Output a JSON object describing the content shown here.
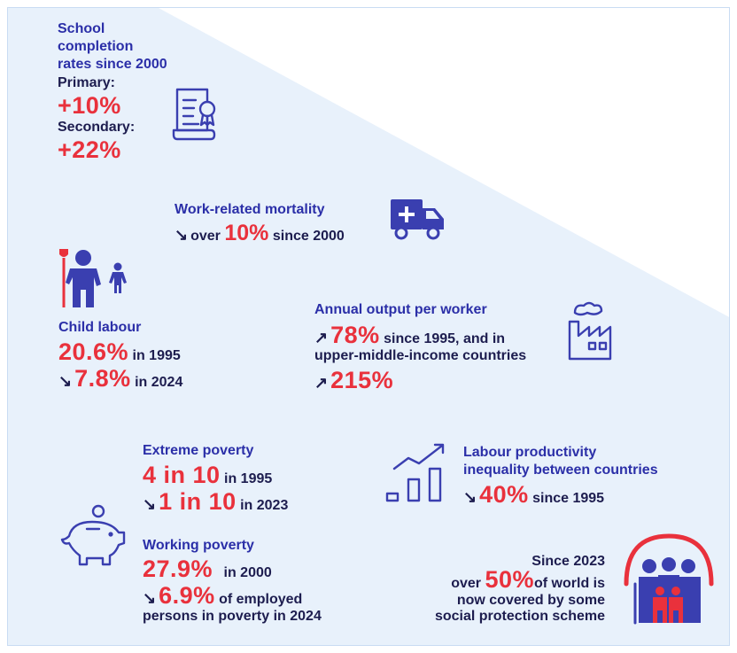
{
  "school": {
    "title_lines": [
      "School",
      "completion",
      "rates since 2000"
    ],
    "primary_label": "Primary:",
    "primary_value": "+10%",
    "secondary_label": "Secondary:",
    "secondary_value": "+22%"
  },
  "mortality": {
    "title": "Work-related mortality",
    "prefix": "over",
    "value": "10%",
    "suffix": "since 2000"
  },
  "child_labour": {
    "title": "Child labour",
    "value1": "20.6%",
    "year1": "in 1995",
    "value2": "7.8%",
    "year2": "in 2024"
  },
  "output": {
    "title": "Annual output per worker",
    "value1": "78%",
    "text1": "since 1995, and in",
    "text2": "upper-middle-income countries",
    "value2": "215%"
  },
  "extreme_poverty": {
    "title": "Extreme poverty",
    "value1": "4 in 10",
    "year1": "in 1995",
    "value2": "1 in 10",
    "year2": "in 2023"
  },
  "working_poverty": {
    "title": "Working poverty",
    "value1": "27.9%",
    "year1": "in 2000",
    "value2": "6.9%",
    "text2": "of employed",
    "text3": "persons in poverty in 2024"
  },
  "productivity": {
    "title_lines": [
      "Labour productivity",
      "inequality between countries"
    ],
    "value": "40%",
    "suffix": "since 1995"
  },
  "social": {
    "line1": "Since 2023",
    "prefix": "over",
    "value": "50%",
    "line2": "of world is",
    "line3": "now covered by some",
    "line4": "social protection scheme"
  },
  "arrows": {
    "down": "↘",
    "up": "↗"
  },
  "icons": [
    "certificate-icon",
    "ambulance-icon",
    "child-labour-icon",
    "factory-icon",
    "growth-chart-icon",
    "piggy-bank-icon",
    "family-umbrella-icon"
  ],
  "colors": {
    "blue": "#2b2fa8",
    "red": "#e9313c",
    "dark": "#1d1d4f",
    "icon": "#3a3fb0",
    "background": "#e8f1fb"
  }
}
